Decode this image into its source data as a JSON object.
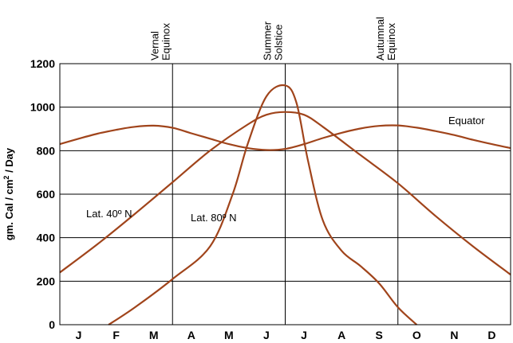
{
  "chart_data": {
    "type": "line",
    "ylabel_parts": [
      "gm. Cal / cm",
      "2",
      " / Day"
    ],
    "ylim": [
      0,
      1200
    ],
    "yticks": [
      0,
      200,
      400,
      600,
      800,
      1000,
      1200
    ],
    "months": [
      "J",
      "F",
      "M",
      "A",
      "M",
      "J",
      "J",
      "A",
      "S",
      "O",
      "N",
      "D"
    ],
    "grid": "horizontal lines every 200; vertical lines at equinoxes and solstice",
    "markers": [
      {
        "name": "vernal-equinox",
        "lines": [
          "Vernal",
          "Equinox"
        ],
        "month_pos": 3.0
      },
      {
        "name": "summer-solstice",
        "lines": [
          "Summer",
          "Solstice"
        ],
        "month_pos": 6.0
      },
      {
        "name": "autumnal-equinox",
        "lines": [
          "Autumnal",
          "Equinox"
        ],
        "month_pos": 9.0
      }
    ],
    "series": [
      {
        "name": "Equator",
        "label": "Equator",
        "color": "#a0441b",
        "points": [
          [
            0.0,
            830
          ],
          [
            0.5,
            855
          ],
          [
            1.0,
            878
          ],
          [
            1.5,
            896
          ],
          [
            2.0,
            910
          ],
          [
            2.5,
            915
          ],
          [
            3.0,
            905
          ],
          [
            3.5,
            880
          ],
          [
            4.0,
            855
          ],
          [
            4.5,
            830
          ],
          [
            5.0,
            812
          ],
          [
            5.5,
            803
          ],
          [
            6.0,
            808
          ],
          [
            6.5,
            830
          ],
          [
            7.0,
            858
          ],
          [
            7.5,
            882
          ],
          [
            8.0,
            902
          ],
          [
            8.5,
            914
          ],
          [
            9.0,
            916
          ],
          [
            9.5,
            906
          ],
          [
            10.0,
            890
          ],
          [
            10.5,
            872
          ],
          [
            11.0,
            850
          ],
          [
            11.5,
            830
          ],
          [
            12.0,
            812
          ]
        ]
      },
      {
        "name": "Lat. 40° N",
        "label": "Lat. 40º N",
        "color": "#a0441b",
        "points": [
          [
            0.0,
            240
          ],
          [
            1.0,
            370
          ],
          [
            2.0,
            510
          ],
          [
            3.0,
            655
          ],
          [
            4.0,
            800
          ],
          [
            5.0,
            920
          ],
          [
            5.5,
            965
          ],
          [
            6.0,
            978
          ],
          [
            6.5,
            965
          ],
          [
            7.0,
            910
          ],
          [
            8.0,
            780
          ],
          [
            9.0,
            650
          ],
          [
            10.0,
            500
          ],
          [
            11.0,
            360
          ],
          [
            12.0,
            230
          ]
        ]
      },
      {
        "name": "Lat. 80° N",
        "label": "Lat. 80º N",
        "color": "#a0441b",
        "points": [
          [
            1.3,
            0
          ],
          [
            2.0,
            80
          ],
          [
            3.0,
            210
          ],
          [
            4.0,
            360
          ],
          [
            4.6,
            600
          ],
          [
            5.0,
            830
          ],
          [
            5.5,
            1050
          ],
          [
            6.0,
            1100
          ],
          [
            6.3,
            1020
          ],
          [
            6.6,
            760
          ],
          [
            7.0,
            480
          ],
          [
            7.5,
            340
          ],
          [
            8.0,
            270
          ],
          [
            8.5,
            190
          ],
          [
            9.0,
            80
          ],
          [
            9.5,
            0
          ]
        ]
      }
    ]
  }
}
